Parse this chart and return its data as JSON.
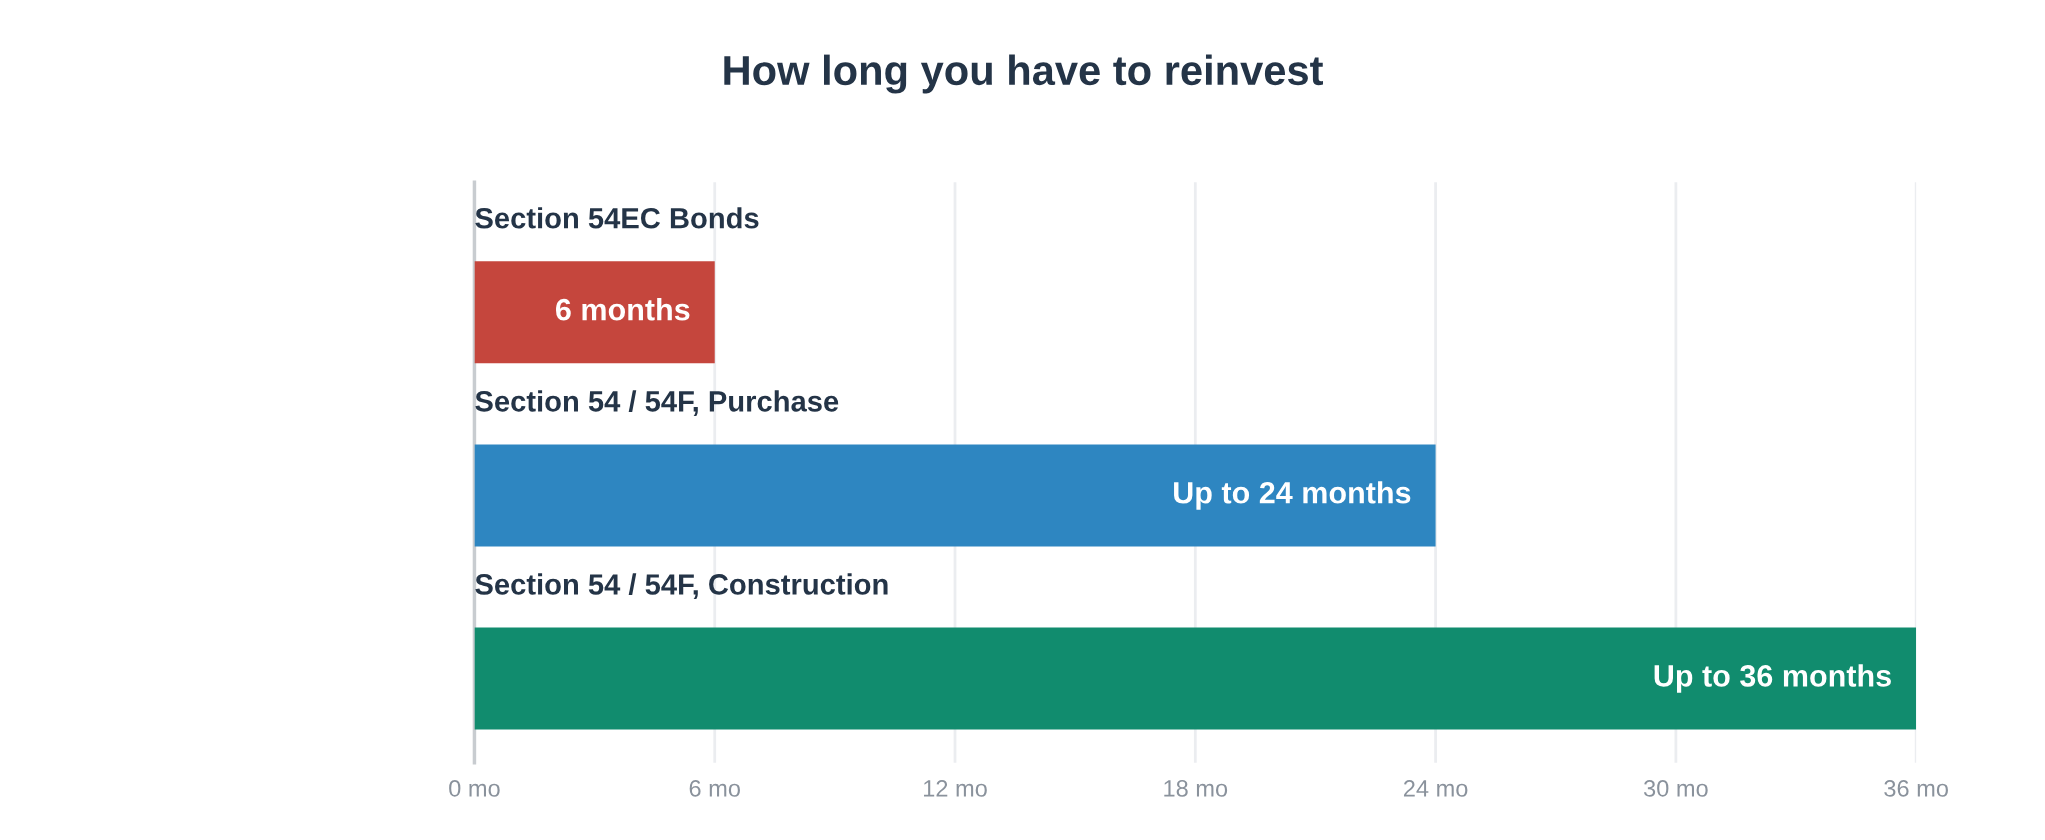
{
  "chart_data": {
    "type": "bar",
    "orientation": "horizontal",
    "title": "How long you have to reinvest",
    "categories": [
      "Section 54EC Bonds",
      "Section 54 / 54F, Purchase",
      "Section 54 / 54F, Construction"
    ],
    "values": [
      6,
      24,
      36
    ],
    "colors": [
      "#c5463d",
      "#2e86c1",
      "#118c6e"
    ],
    "value_labels": [
      "6 months",
      "Up to 24 months",
      "Up to 36 months"
    ],
    "xlim": [
      0,
      36
    ],
    "xticks": [
      {
        "value": 0,
        "label": "0 mo"
      },
      {
        "value": 6,
        "label": "6 mo"
      },
      {
        "value": 12,
        "label": "12 mo"
      },
      {
        "value": 18,
        "label": "18 mo"
      },
      {
        "value": 24,
        "label": "24 mo"
      },
      {
        "value": 30,
        "label": "30 mo"
      },
      {
        "value": 36,
        "label": "36 mo"
      }
    ],
    "grid": "x"
  }
}
